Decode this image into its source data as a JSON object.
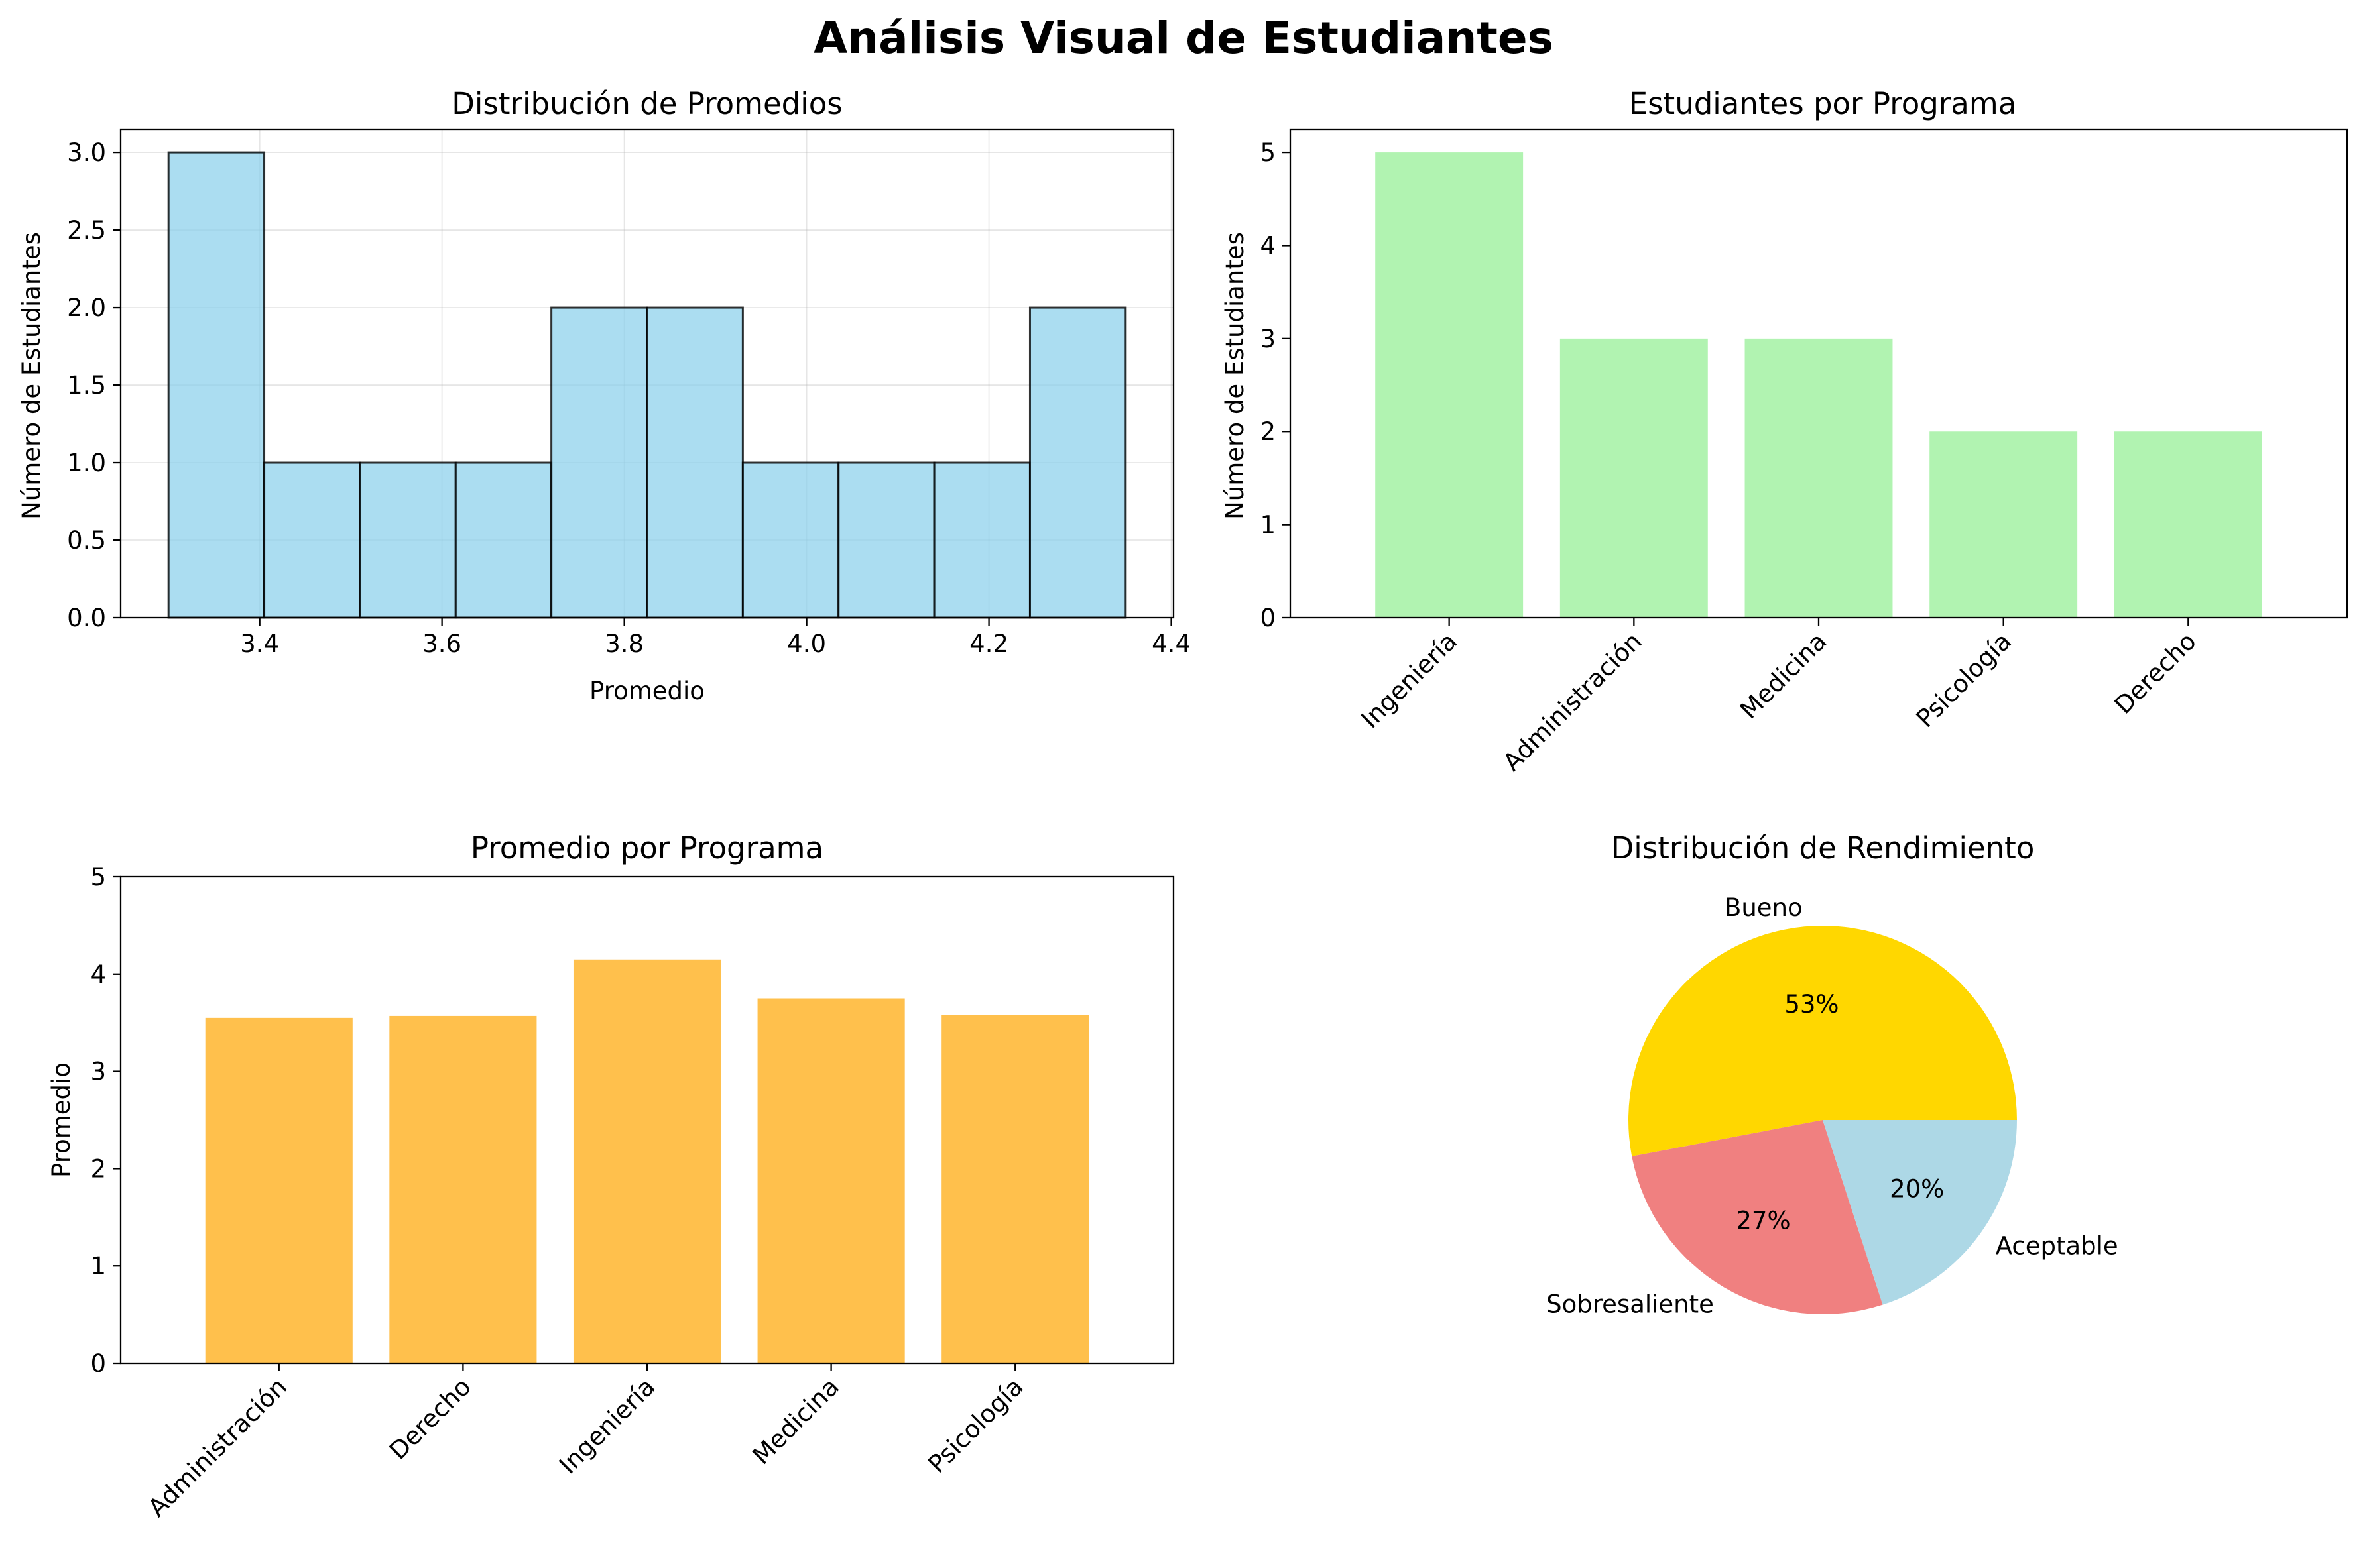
{
  "figure_title": "Análisis Visual de Estudiantes",
  "chart_data": [
    {
      "type": "bar",
      "subtype": "histogram",
      "title": "Distribución de Promedios",
      "xlabel": "Promedio",
      "ylabel": "Número de Estudiantes",
      "bin_edges": [
        3.3,
        3.405,
        3.51,
        3.615,
        3.72,
        3.825,
        3.93,
        4.035,
        4.14,
        4.245,
        4.35
      ],
      "values": [
        3,
        1,
        1,
        1,
        2,
        2,
        1,
        1,
        1,
        2
      ],
      "xlim": [
        3.2475,
        4.4025
      ],
      "ylim": [
        0,
        3.15
      ],
      "xticks": [
        "3.4",
        "3.6",
        "3.8",
        "4.0",
        "4.2",
        "4.4"
      ],
      "yticks": [
        "0.0",
        "0.5",
        "1.0",
        "1.5",
        "2.0",
        "2.5",
        "3.0"
      ],
      "grid": true,
      "color": "#87ceeb"
    },
    {
      "type": "bar",
      "title": "Estudiantes por Programa",
      "xlabel": "",
      "ylabel": "Número de Estudiantes",
      "categories": [
        "Ingeniería",
        "Administración",
        "Medicina",
        "Psicología",
        "Derecho"
      ],
      "values": [
        5,
        3,
        3,
        2,
        2
      ],
      "ylim": [
        0,
        5.25
      ],
      "yticks": [
        "0",
        "1",
        "2",
        "3",
        "4",
        "5"
      ],
      "grid": false,
      "color": "#90ee90"
    },
    {
      "type": "bar",
      "title": "Promedio por Programa",
      "xlabel": "",
      "ylabel": "Promedio",
      "categories": [
        "Administración",
        "Derecho",
        "Ingeniería",
        "Medicina",
        "Psicología"
      ],
      "values": [
        3.55,
        3.57,
        4.15,
        3.75,
        3.58
      ],
      "ylim": [
        0,
        5
      ],
      "yticks": [
        "0",
        "1",
        "2",
        "3",
        "4",
        "5"
      ],
      "grid": false,
      "color": "#ffa500"
    },
    {
      "type": "pie",
      "title": "Distribución de Rendimiento",
      "slices": [
        {
          "label": "Bueno",
          "value": 53,
          "pct": "53%",
          "color": "#ffd700"
        },
        {
          "label": "Sobresaliente",
          "value": 27,
          "pct": "27%",
          "color": "#f08080"
        },
        {
          "label": "Aceptable",
          "value": 20,
          "pct": "20%",
          "color": "#add8e6"
        }
      ]
    }
  ]
}
